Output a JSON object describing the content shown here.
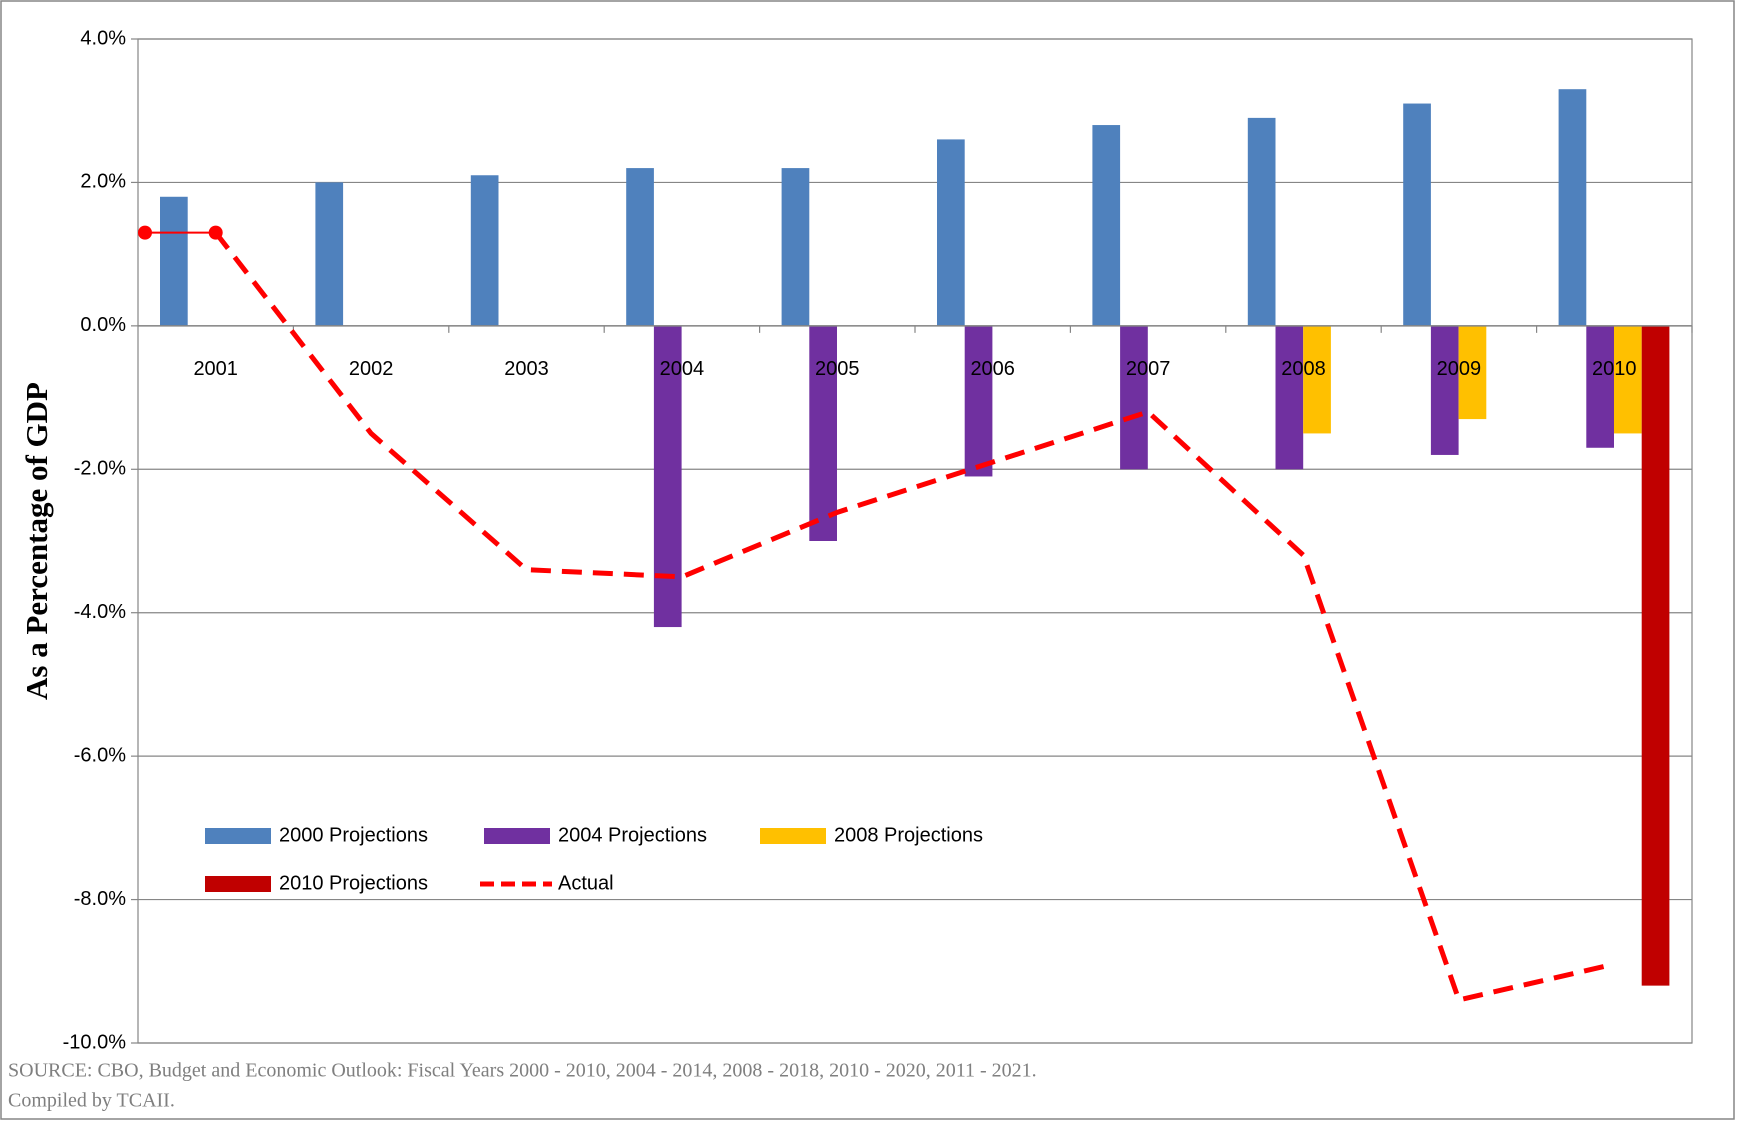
{
  "chart_data": {
    "type": "bar",
    "y_axis_label": "As a Percentage of GDP",
    "source": "SOURCE: CBO, Budget and Economic Outlook: Fiscal Years 2000 - 2010, 2004 - 2014, 2008 - 2018, 2010 - 2020, 2011 - 2021.",
    "credit": "Compiled by TCAII.",
    "categories": [
      "2001",
      "2002",
      "2003",
      "2004",
      "2005",
      "2006",
      "2007",
      "2008",
      "2009",
      "2010"
    ],
    "series": [
      {
        "name": "2000 Projections",
        "color": "#4f81bd",
        "type": "bar",
        "values": [
          1.8,
          2.0,
          2.1,
          2.2,
          2.2,
          2.6,
          2.8,
          2.9,
          3.1,
          3.3
        ]
      },
      {
        "name": "2004 Projections",
        "color": "#7030a0",
        "type": "bar",
        "values": [
          null,
          null,
          null,
          -4.2,
          -3.0,
          -2.1,
          -2.0,
          -2.0,
          -1.8,
          -1.7
        ]
      },
      {
        "name": "2008 Projections",
        "color": "#ffc000",
        "type": "bar",
        "values": [
          null,
          null,
          null,
          null,
          null,
          null,
          null,
          -1.5,
          -1.3,
          -1.5
        ]
      },
      {
        "name": "2010 Projections",
        "color": "#c00000",
        "type": "bar",
        "values": [
          null,
          null,
          null,
          null,
          null,
          null,
          null,
          null,
          null,
          -9.2
        ]
      },
      {
        "name": "Actual",
        "color": "#ff0000",
        "type": "line",
        "dashed": true,
        "start_value": 1.3,
        "values": [
          1.3,
          -1.5,
          -3.4,
          -3.5,
          -2.6,
          -1.9,
          -1.2,
          -3.2,
          -9.4,
          -8.9
        ]
      }
    ],
    "ylim": [
      -10,
      4
    ],
    "yticks": [
      {
        "value": -10,
        "label": "-10.0%"
      },
      {
        "value": -8,
        "label": "-8.0%"
      },
      {
        "value": -6,
        "label": "-6.0%"
      },
      {
        "value": -4,
        "label": "-4.0%"
      },
      {
        "value": -2,
        "label": "-2.0%"
      },
      {
        "value": 0,
        "label": "0.0%"
      },
      {
        "value": 2,
        "label": "2.0%"
      },
      {
        "value": 4,
        "label": "4.0%"
      }
    ],
    "grid": true
  }
}
